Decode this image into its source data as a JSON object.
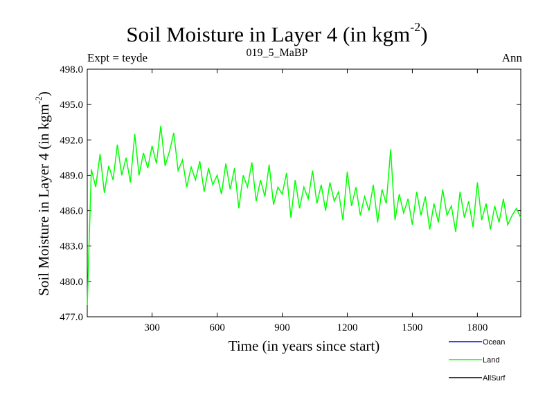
{
  "header": {
    "title_main": "Soil Moisture in Layer 4 (in kgm",
    "title_sup": "-2",
    "title_end": ")",
    "left": "Expt = teyde",
    "center": "019_5_MaBP",
    "right": "Ann"
  },
  "colors": {
    "ocean": "#0000ff",
    "land": "#00ff00",
    "allsurf": "#000000"
  },
  "chart_data": {
    "type": "line",
    "title": "Soil Moisture in Layer 4 (in kgm-2)",
    "xlabel": "Time (in years since start)",
    "ylabel_main": "Soil Moisture in Layer 4 (in kgm",
    "ylabel_sup": "-2",
    "ylabel_end": ")",
    "xlim": [
      1,
      2000
    ],
    "ylim": [
      477,
      498
    ],
    "xticks": [
      300,
      600,
      900,
      1200,
      1500,
      1800
    ],
    "yticks": [
      477.0,
      480.0,
      483.0,
      486.0,
      489.0,
      492.0,
      495.0,
      498.0
    ],
    "grid": false,
    "legend": [
      "Ocean",
      "Land",
      "AllSurf"
    ],
    "legend_position": "bottom-right",
    "series": [
      {
        "name": "Land",
        "x": [
          1,
          20,
          40,
          60,
          80,
          100,
          120,
          140,
          160,
          180,
          200,
          220,
          240,
          260,
          280,
          300,
          320,
          340,
          360,
          380,
          400,
          420,
          440,
          460,
          480,
          500,
          520,
          540,
          560,
          580,
          600,
          620,
          640,
          660,
          680,
          700,
          720,
          740,
          760,
          780,
          800,
          820,
          840,
          860,
          880,
          900,
          920,
          940,
          960,
          980,
          1000,
          1020,
          1040,
          1060,
          1080,
          1100,
          1120,
          1140,
          1160,
          1180,
          1200,
          1220,
          1240,
          1260,
          1280,
          1300,
          1320,
          1340,
          1360,
          1380,
          1400,
          1420,
          1440,
          1460,
          1480,
          1500,
          1520,
          1540,
          1560,
          1580,
          1600,
          1620,
          1640,
          1660,
          1680,
          1700,
          1720,
          1740,
          1760,
          1780,
          1800,
          1820,
          1840,
          1860,
          1880,
          1900,
          1920,
          1940,
          1960,
          1980,
          2000
        ],
        "values": [
          478.0,
          489.5,
          488.0,
          490.8,
          487.5,
          489.8,
          488.6,
          491.6,
          489.0,
          490.5,
          488.4,
          492.5,
          489.0,
          490.9,
          489.6,
          491.5,
          490.0,
          493.2,
          489.8,
          491.0,
          492.6,
          489.4,
          490.3,
          488.0,
          489.7,
          488.6,
          490.2,
          487.6,
          489.6,
          488.2,
          489.0,
          487.4,
          490.0,
          487.8,
          489.6,
          486.2,
          489.0,
          488.0,
          490.1,
          486.8,
          488.6,
          487.2,
          489.9,
          486.5,
          488.0,
          487.4,
          489.2,
          485.4,
          488.6,
          486.2,
          488.0,
          487.0,
          489.4,
          486.6,
          488.2,
          486.0,
          488.4,
          486.8,
          487.6,
          485.2,
          489.3,
          486.4,
          488.0,
          485.6,
          487.2,
          486.0,
          488.2,
          485.0,
          487.8,
          486.6,
          491.2,
          485.2,
          487.4,
          485.8,
          487.0,
          484.8,
          487.6,
          485.6,
          487.2,
          484.4,
          486.6,
          485.0,
          487.8,
          485.6,
          486.4,
          484.2,
          487.6,
          485.4,
          486.8,
          484.6,
          488.4,
          485.2,
          486.6,
          484.4,
          486.4,
          485.0,
          487.0,
          484.8,
          485.6,
          486.2,
          485.4
        ]
      }
    ]
  }
}
